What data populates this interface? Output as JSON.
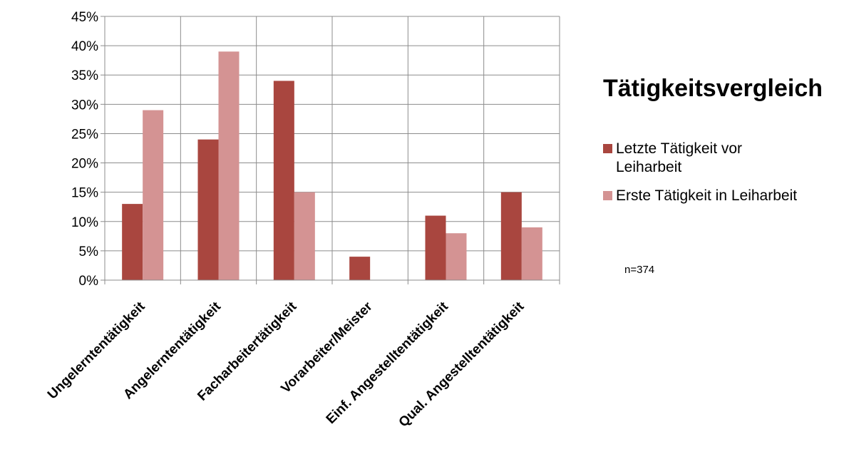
{
  "chart_data": {
    "type": "bar",
    "title": "Tätigkeitsvergleich",
    "categories": [
      "Ungelerntentätigkeit",
      "Angelerntentätigkeit",
      "Facharbeitertätigkeit",
      "Vorarbeiter/Meister",
      "Einf. Angestelltentätigkeit",
      "Qual. Angestelltentätigkeit"
    ],
    "series": [
      {
        "name": "Letzte Tätigkeit vor Leiharbeit",
        "color": "#A9463F",
        "values": [
          13,
          24,
          34,
          4,
          11,
          15
        ]
      },
      {
        "name": "Erste Tätigkeit in Leiharbeit",
        "color": "#D49393",
        "values": [
          29,
          39,
          15,
          0,
          8,
          9
        ]
      }
    ],
    "ylim": [
      0,
      45
    ],
    "y_ticks": [
      "0%",
      "5%",
      "10%",
      "15%",
      "20%",
      "25%",
      "30%",
      "35%",
      "40%",
      "45%"
    ],
    "xlabel": "",
    "ylabel": "",
    "grid": "vertical and horizontal",
    "legend_position": "right",
    "annotation": "n=374"
  }
}
